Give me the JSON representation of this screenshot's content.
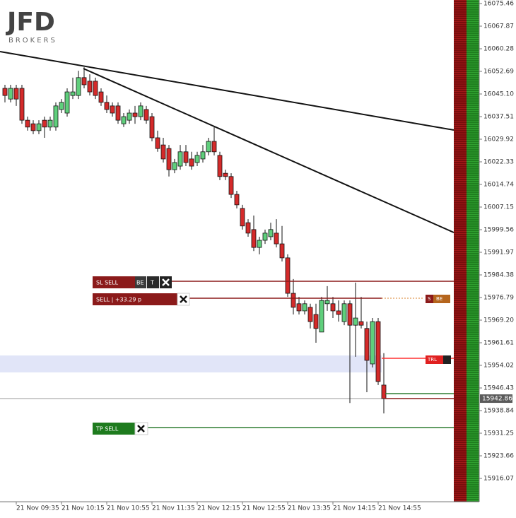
{
  "chart_data": {
    "type": "candlestick",
    "logo": "JFD",
    "logo_subtitle": "BROKERS",
    "categories": [
      null,
      null,
      "21 Nov 09:35",
      null,
      null,
      null,
      null,
      null,
      null,
      null,
      "21 Nov 10:15",
      null,
      null,
      null,
      null,
      null,
      null,
      null,
      "21 Nov 10:55",
      null,
      null,
      null,
      null,
      null,
      null,
      null,
      "21 Nov 11:35",
      null,
      null,
      null,
      null,
      null,
      null,
      null,
      "21 Nov 12:15",
      null,
      null,
      null,
      null,
      null,
      null,
      null,
      "21 Nov 12:55",
      null,
      null,
      null,
      null,
      null,
      null,
      null,
      "21 Nov 13:35",
      null,
      null,
      null,
      null,
      null,
      null,
      null,
      "21 Nov 14:15",
      null,
      null,
      null,
      null,
      null,
      null,
      null,
      "21 Nov 14:55",
      null
    ],
    "open": [
      16047.0,
      16043.4,
      16047.0,
      16047.0,
      16036.3,
      16035.1,
      16032.8,
      16036.3,
      16034.0,
      16034.0,
      16039.9,
      16038.7,
      16044.6,
      16044.6,
      16050.6,
      16049.4,
      16049.4,
      16045.8,
      16042.3,
      16041.1,
      16041.1,
      16035.1,
      16036.3,
      16038.7,
      16037.5,
      16039.9,
      16037.5,
      16030.4,
      16028.0,
      16026.8,
      16019.7,
      16020.9,
      16025.7,
      16023.3,
      16022.1,
      16023.3,
      16025.7,
      16029.2,
      16024.5,
      16018.5,
      16017.4,
      16011.4,
      16006.7,
      16001.9,
      15999.6,
      15993.6,
      15996.0,
      15997.2,
      15998.4,
      15994.8,
      15990.1,
      15978.2,
      15974.7,
      15972.3,
      15973.5,
      15971.1,
      15965.2,
      15974.7,
      15974.7,
      15972.3,
      15968.7,
      15974.7,
      15967.5,
      15968.7,
      15966.4,
      15954.5,
      15968.7,
      15947.4
    ],
    "high": [
      16048.2,
      16048.2,
      16048.2,
      16048.2,
      16037.5,
      16036.3,
      16036.3,
      16037.5,
      16037.5,
      16042.3,
      16043.4,
      16047.0,
      16050.6,
      16052.9,
      16054.1,
      16051.7,
      16050.6,
      16047.0,
      16044.6,
      16042.3,
      16042.3,
      16038.7,
      16039.9,
      16041.1,
      16042.3,
      16041.1,
      16038.7,
      16032.8,
      16030.4,
      16028.0,
      16023.3,
      16028.0,
      16028.0,
      16025.7,
      16025.7,
      16028.0,
      16030.4,
      16034.0,
      16025.7,
      16019.7,
      16018.5,
      16012.6,
      16007.9,
      16003.1,
      16004.3,
      15997.2,
      15999.6,
      16001.9,
      16003.1,
      16000.8,
      15991.3,
      15983.0,
      15977.0,
      15975.8,
      15974.7,
      15974.7,
      15977.0,
      15980.6,
      15977.0,
      15975.8,
      15975.8,
      15975.8,
      15981.8,
      15977.0,
      15968.7,
      15969.9,
      15969.9,
      15958.1
    ],
    "low": [
      16042.3,
      16042.3,
      16041.1,
      16035.1,
      16032.8,
      16031.6,
      16031.6,
      16030.4,
      16032.8,
      16032.8,
      16038.7,
      16037.5,
      16043.4,
      16043.4,
      16047.0,
      16044.6,
      16043.4,
      16041.1,
      16038.7,
      16037.5,
      16035.1,
      16034.0,
      16035.1,
      16035.1,
      16036.3,
      16035.1,
      16029.2,
      16025.7,
      16022.1,
      16017.4,
      16018.5,
      16019.7,
      16020.9,
      16019.7,
      16020.9,
      16022.1,
      16024.5,
      16024.5,
      16016.2,
      16016.2,
      16010.2,
      16006.7,
      15999.6,
      15997.2,
      15992.4,
      15991.3,
      15994.8,
      15996.0,
      15993.6,
      15988.9,
      15977.0,
      15971.1,
      15971.1,
      15971.1,
      15966.4,
      15961.6,
      15965.2,
      15972.3,
      15969.9,
      15968.7,
      15967.5,
      15941.4,
      15956.9,
      15966.4,
      15945.0,
      15953.3,
      15947.4,
      15937.9
    ],
    "close": [
      16044.6,
      16047.0,
      16043.4,
      16036.3,
      16034.0,
      16032.8,
      16035.1,
      16034.0,
      16036.3,
      16041.1,
      16042.3,
      16045.8,
      16045.8,
      16050.6,
      16048.2,
      16045.8,
      16044.6,
      16042.3,
      16039.9,
      16038.7,
      16036.3,
      16037.5,
      16038.7,
      16037.5,
      16041.1,
      16036.3,
      16030.4,
      16026.8,
      16023.3,
      16019.7,
      16022.1,
      16025.7,
      16022.1,
      16020.9,
      16024.5,
      16025.7,
      16029.2,
      16025.7,
      16017.4,
      16017.4,
      16011.4,
      16007.9,
      16000.8,
      15998.4,
      15993.6,
      15996.0,
      15998.4,
      15999.6,
      15994.8,
      15990.1,
      15978.2,
      15973.5,
      15972.3,
      15974.7,
      15968.7,
      15966.4,
      15975.8,
      15975.8,
      15972.3,
      15971.1,
      15974.7,
      15967.5,
      15969.9,
      15967.5,
      15955.7,
      15968.7,
      15948.6,
      15942.86
    ],
    "colors": {
      "up": "#5fcf7c",
      "down": "#d42a2a"
    },
    "ylim": [
      15908.24,
      16076.65
    ],
    "yticks": [
      15916.07,
      15923.66,
      15931.25,
      15938.84,
      15946.43,
      15954.02,
      15961.61,
      {
        "value": 15969.2,
        "label": "15969.20"
      },
      15976.79,
      15984.38,
      15991.97,
      15999.56,
      16007.15,
      16014.74,
      16022.33,
      16029.92,
      16037.51,
      {
        "value": 16045.1,
        "label": "16045.10"
      },
      16052.69,
      16060.28,
      16067.87,
      16075.46
    ],
    "current_price": 15942.86,
    "order_labels": {
      "stop_loss": "SL SELL",
      "break_even": "BE",
      "trail": "T",
      "position": "SELL | +33.29 p",
      "position_side": "S",
      "position_be": "BE",
      "trailing": "TRL",
      "take_profit": "TP SELL"
    }
  }
}
